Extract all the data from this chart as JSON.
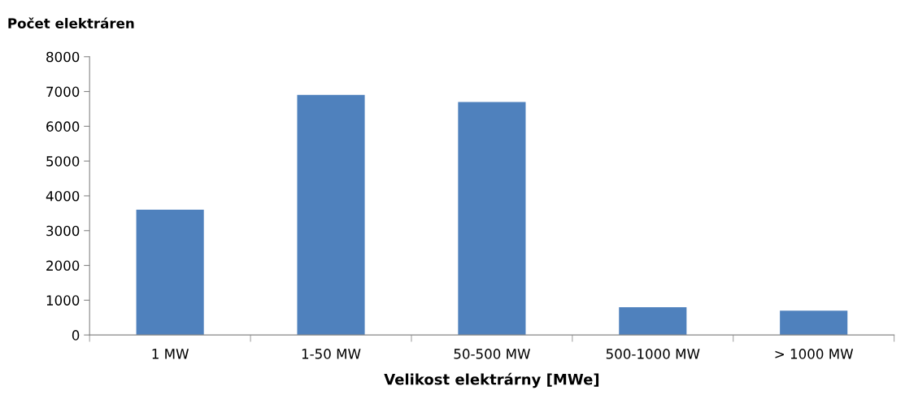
{
  "chart_data": {
    "type": "bar",
    "ylabel": "Počet elektráren",
    "xlabel": "Velikost elektrárny [MWe]",
    "categories": [
      "1 MW",
      "1-50 MW",
      "50-500 MW",
      "500-1000 MW",
      "> 1000 MW"
    ],
    "values": [
      3600,
      6900,
      6700,
      800,
      700
    ],
    "color": "#4f81bd",
    "ylim": [
      0,
      8000
    ],
    "yticks": [
      0,
      1000,
      2000,
      3000,
      4000,
      5000,
      6000,
      7000,
      8000
    ],
    "grid": false,
    "legend": false
  }
}
